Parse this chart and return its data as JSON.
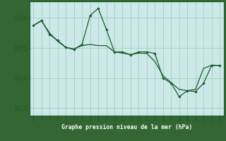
{
  "title": "Graphe pression niveau de la mer (hPa)",
  "bg_color": "#cce8e8",
  "grid_color": "#99ccbb",
  "line_color": "#1a5c2a",
  "label_bg": "#336633",
  "label_fg": "#ffffff",
  "xlim": [
    -0.5,
    23.5
  ],
  "ylim": [
    1012.75,
    1016.55
  ],
  "yticks": [
    1013,
    1014,
    1015,
    1016
  ],
  "xticks": [
    0,
    1,
    2,
    3,
    4,
    5,
    6,
    7,
    8,
    9,
    10,
    11,
    12,
    13,
    14,
    15,
    16,
    17,
    18,
    19,
    20,
    21,
    22,
    23
  ],
  "series1_x": [
    0,
    1,
    2,
    3,
    4,
    5,
    6,
    7,
    8,
    9,
    10,
    11,
    12,
    13,
    14,
    15,
    16,
    17,
    18,
    19,
    20,
    21,
    22,
    23
  ],
  "series1_y": [
    1015.75,
    1015.9,
    1015.5,
    1015.22,
    1015.02,
    1014.97,
    1015.08,
    1015.12,
    1015.08,
    1015.08,
    1014.87,
    1014.83,
    1014.78,
    1014.83,
    1014.82,
    1014.55,
    1014.08,
    1013.85,
    1013.62,
    1013.58,
    1013.62,
    1014.32,
    1014.43,
    1014.42
  ],
  "series2_x": [
    0,
    1,
    2,
    3,
    4,
    5,
    6,
    7,
    8,
    9,
    10,
    11,
    12,
    13,
    14,
    15,
    16,
    17,
    18,
    19,
    20,
    21,
    22,
    23
  ],
  "series2_y": [
    1015.75,
    1015.92,
    1015.45,
    1015.25,
    1015.02,
    1014.95,
    1015.12,
    1016.08,
    1016.32,
    1015.62,
    1014.87,
    1014.87,
    1014.77,
    1014.87,
    1014.87,
    1014.82,
    1014.0,
    1013.83,
    1013.38,
    1013.58,
    1013.55,
    1013.82,
    1014.42,
    1014.42
  ]
}
